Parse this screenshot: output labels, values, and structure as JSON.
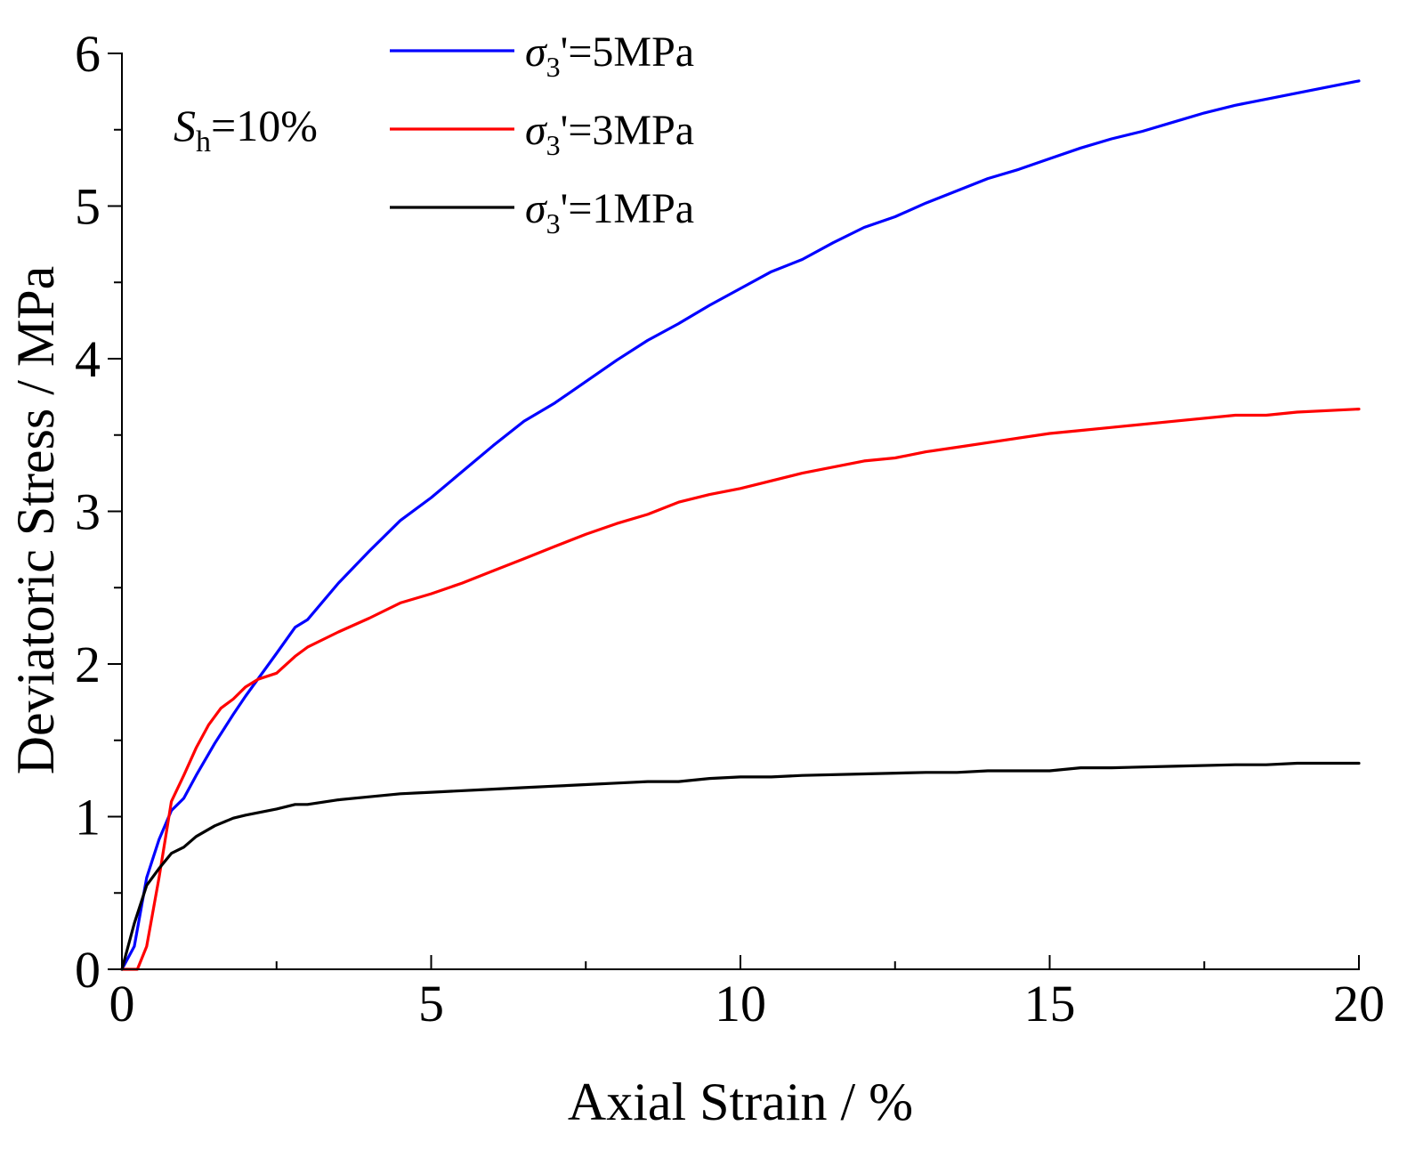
{
  "chart_data": {
    "type": "line",
    "title": "",
    "xlabel": "Axial Strain / %",
    "ylabel": "Deviatoric Stress / MPa",
    "xlim": [
      0,
      20
    ],
    "ylim": [
      0,
      6
    ],
    "xticks": [
      0,
      5,
      10,
      15,
      20
    ],
    "yticks": [
      0,
      1,
      2,
      3,
      4,
      5,
      6
    ],
    "xtick_labels": [
      "0",
      "5",
      "10",
      "15",
      "20"
    ],
    "ytick_labels": [
      "0",
      "1",
      "2",
      "3",
      "4",
      "5",
      "6"
    ],
    "grid": false,
    "legend_position": "top-center",
    "annotation": {
      "main": "S",
      "sub": "h",
      "rest": "=10%"
    },
    "series": [
      {
        "name": "σ3'=5MPa",
        "legend": {
          "sym": "σ",
          "sub": "3",
          "rest": "'=5MPa"
        },
        "color": "#0000ff",
        "x": [
          0,
          0.2,
          0.4,
          0.6,
          0.8,
          1.0,
          1.2,
          1.5,
          1.8,
          2.0,
          2.5,
          2.8,
          3.0,
          3.5,
          4.0,
          4.5,
          5.0,
          5.5,
          6.0,
          6.5,
          7.0,
          7.5,
          8.0,
          8.5,
          9.0,
          9.5,
          10.0,
          10.5,
          11.0,
          11.5,
          12.0,
          12.5,
          13.0,
          13.5,
          14.0,
          14.5,
          15.0,
          15.5,
          16.0,
          16.5,
          17.0,
          17.5,
          18.0,
          18.5,
          19.0,
          19.5,
          20.0
        ],
        "y": [
          0,
          0.15,
          0.6,
          0.85,
          1.04,
          1.12,
          1.27,
          1.48,
          1.67,
          1.79,
          2.07,
          2.24,
          2.29,
          2.53,
          2.74,
          2.94,
          3.09,
          3.26,
          3.43,
          3.59,
          3.71,
          3.85,
          3.99,
          4.12,
          4.23,
          4.35,
          4.46,
          4.57,
          4.65,
          4.76,
          4.86,
          4.93,
          5.02,
          5.1,
          5.18,
          5.24,
          5.31,
          5.38,
          5.44,
          5.49,
          5.55,
          5.61,
          5.66,
          5.7,
          5.74,
          5.78,
          5.82
        ]
      },
      {
        "name": "σ3'=3MPa",
        "legend": {
          "sym": "σ",
          "sub": "3",
          "rest": "'=3MPa"
        },
        "color": "#ff0000",
        "x": [
          0,
          0.25,
          0.4,
          0.6,
          0.8,
          1.0,
          1.2,
          1.4,
          1.6,
          1.8,
          2.0,
          2.2,
          2.5,
          2.8,
          3.0,
          3.5,
          4.0,
          4.5,
          5.0,
          5.5,
          6.0,
          6.5,
          7.0,
          7.5,
          8.0,
          8.5,
          9.0,
          9.5,
          10.0,
          11.0,
          12.0,
          12.5,
          13.0,
          13.5,
          14.0,
          15.0,
          15.5,
          16.0,
          17.0,
          18.0,
          18.5,
          19.0,
          20.0
        ],
        "y": [
          0,
          0,
          0.15,
          0.6,
          1.1,
          1.27,
          1.45,
          1.6,
          1.71,
          1.77,
          1.85,
          1.9,
          1.94,
          2.05,
          2.11,
          2.21,
          2.3,
          2.4,
          2.46,
          2.53,
          2.61,
          2.69,
          2.77,
          2.85,
          2.92,
          2.98,
          3.06,
          3.11,
          3.15,
          3.25,
          3.33,
          3.35,
          3.39,
          3.42,
          3.45,
          3.51,
          3.53,
          3.55,
          3.59,
          3.63,
          3.63,
          3.65,
          3.67
        ]
      },
      {
        "name": "σ3'=1MPa",
        "legend": {
          "sym": "σ",
          "sub": "3",
          "rest": "'=1MPa"
        },
        "color": "#000000",
        "x": [
          0,
          0.2,
          0.4,
          0.6,
          0.8,
          1.0,
          1.2,
          1.5,
          1.8,
          2.0,
          2.5,
          2.8,
          3.0,
          3.5,
          4.0,
          4.5,
          5.0,
          6.0,
          6.5,
          7.0,
          7.5,
          8.0,
          8.5,
          9.0,
          9.5,
          10.0,
          10.5,
          11.0,
          12.0,
          13.0,
          13.5,
          14.0,
          15.0,
          15.5,
          16.0,
          17.0,
          18.0,
          18.5,
          19.0,
          20.0
        ],
        "y": [
          0,
          0.3,
          0.55,
          0.66,
          0.76,
          0.8,
          0.87,
          0.94,
          0.99,
          1.01,
          1.05,
          1.08,
          1.08,
          1.11,
          1.13,
          1.15,
          1.16,
          1.18,
          1.19,
          1.2,
          1.21,
          1.22,
          1.23,
          1.23,
          1.25,
          1.26,
          1.26,
          1.27,
          1.28,
          1.29,
          1.29,
          1.3,
          1.3,
          1.32,
          1.32,
          1.33,
          1.34,
          1.34,
          1.35,
          1.35
        ]
      }
    ]
  }
}
